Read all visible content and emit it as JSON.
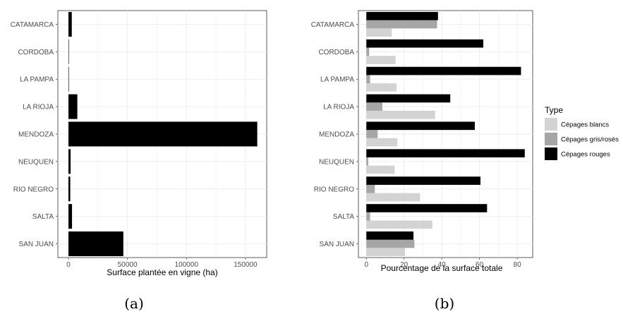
{
  "chart_data": [
    {
      "type": "bar",
      "orientation": "horizontal",
      "caption": "(a)",
      "categories": [
        "CATAMARCA",
        "CORDOBA",
        "LA PAMPA",
        "LA RIOJA",
        "MENDOZA",
        "NEUQUEN",
        "RIO NEGRO",
        "SALTA",
        "SAN JUAN"
      ],
      "values": [
        2800,
        300,
        200,
        7500,
        160000,
        1800,
        1500,
        3000,
        46500
      ],
      "xlabel": "Surface plantée en vigne (ha)",
      "ylabel": "",
      "xlim": [
        -9000,
        168000
      ],
      "xticks": [
        0,
        50000,
        100000,
        150000
      ],
      "grid": true,
      "color": "#000000"
    },
    {
      "type": "bar",
      "orientation": "horizontal",
      "grouped": true,
      "caption": "(b)",
      "categories": [
        "CATAMARCA",
        "CORDOBA",
        "LA PAMPA",
        "LA RIOJA",
        "MENDOZA",
        "NEUQUEN",
        "RIO NEGRO",
        "SALTA",
        "SAN JUAN"
      ],
      "series": [
        {
          "name": "Cépages blancs",
          "color": "#d3d3d3",
          "values": [
            13.5,
            15.5,
            16,
            36.5,
            16.5,
            15,
            28.5,
            35,
            20.5
          ]
        },
        {
          "name": "Cépages gris/rosés",
          "color": "#a6a6a6",
          "values": [
            37.5,
            1.5,
            2,
            8.5,
            6,
            1,
            4.5,
            2,
            25.5
          ]
        },
        {
          "name": "Cépages rouges",
          "color": "#000000",
          "values": [
            38,
            62,
            82,
            44.5,
            57.5,
            84,
            60.5,
            64,
            25
          ]
        }
      ],
      "xlabel": "Pourcentage de la surface totale",
      "ylabel": "",
      "xlim": [
        -4.2,
        88.2
      ],
      "xticks": [
        0,
        20,
        40,
        60,
        80
      ],
      "grid": true,
      "legend": {
        "title": "Type",
        "position": "right"
      }
    }
  ]
}
